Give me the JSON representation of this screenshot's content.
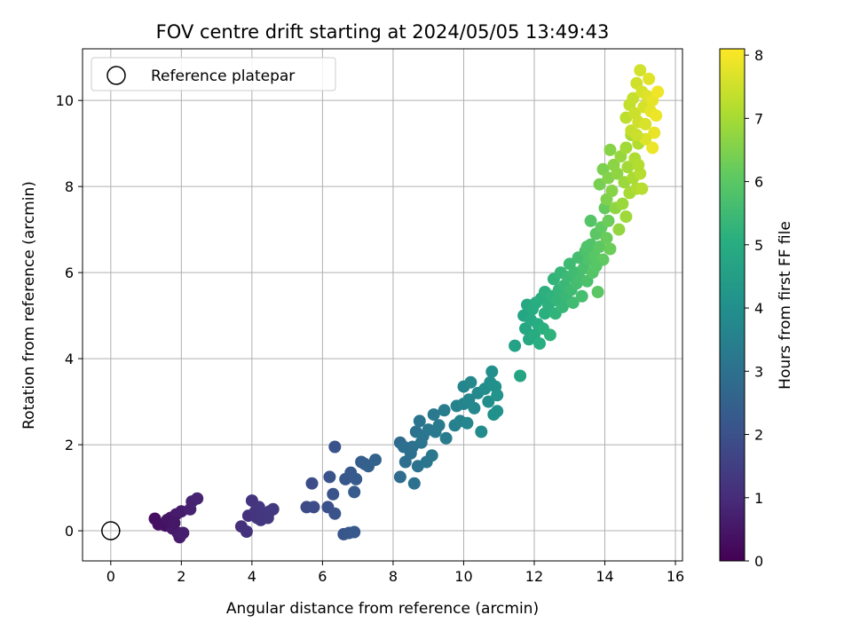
{
  "chart_data": {
    "type": "scatter",
    "title": "FOV centre drift starting at 2024/05/05 13:49:43",
    "xlabel": "Angular distance from reference (arcmin)",
    "ylabel": "Rotation from reference (arcmin)",
    "xlim": [
      -0.8,
      16.2
    ],
    "ylim": [
      -0.7,
      11.2
    ],
    "xticks": [
      0,
      2,
      4,
      6,
      8,
      10,
      12,
      14,
      16
    ],
    "yticks": [
      0,
      2,
      4,
      6,
      8,
      10
    ],
    "grid": true,
    "legend": {
      "position": "top-left",
      "entries": [
        {
          "label": "Reference platepar",
          "marker": "open-circle"
        }
      ]
    },
    "colorbar": {
      "label": "Hours from first FF file",
      "range": [
        0,
        8.1
      ],
      "ticks": [
        0,
        1,
        2,
        3,
        4,
        5,
        6,
        7,
        8
      ],
      "colormap": "viridis"
    },
    "reference_point": {
      "x": 0,
      "y": 0
    },
    "series": [
      {
        "note": "each point: [angular_distance, rotation, hours]",
        "points": [
          [
            1.25,
            0.28,
            0.3
          ],
          [
            1.35,
            0.15,
            0.35
          ],
          [
            1.55,
            0.12,
            0.4
          ],
          [
            1.6,
            0.25,
            0.45
          ],
          [
            1.7,
            0.3,
            0.5
          ],
          [
            1.75,
            0.05,
            0.55
          ],
          [
            1.85,
            0.38,
            0.6
          ],
          [
            1.9,
            -0.05,
            0.6
          ],
          [
            1.95,
            -0.15,
            0.65
          ],
          [
            2.0,
            0.45,
            0.65
          ],
          [
            2.05,
            -0.05,
            0.7
          ],
          [
            2.25,
            0.5,
            0.75
          ],
          [
            2.3,
            0.68,
            0.75
          ],
          [
            2.45,
            0.75,
            0.8
          ],
          [
            1.65,
            0.22,
            0.45
          ],
          [
            1.8,
            0.18,
            0.5
          ],
          [
            3.7,
            0.1,
            1.1
          ],
          [
            3.85,
            -0.02,
            1.15
          ],
          [
            3.9,
            0.35,
            1.15
          ],
          [
            4.0,
            0.7,
            1.2
          ],
          [
            4.1,
            0.45,
            1.2
          ],
          [
            4.2,
            0.55,
            1.25
          ],
          [
            4.25,
            0.25,
            1.25
          ],
          [
            4.3,
            0.4,
            1.3
          ],
          [
            4.45,
            0.3,
            1.3
          ],
          [
            4.5,
            0.45,
            1.35
          ],
          [
            4.6,
            0.5,
            1.35
          ],
          [
            4.15,
            0.3,
            1.25
          ],
          [
            5.55,
            0.55,
            1.8
          ],
          [
            5.75,
            0.55,
            1.85
          ],
          [
            5.7,
            1.1,
            1.9
          ],
          [
            6.15,
            0.55,
            2.0
          ],
          [
            6.2,
            1.25,
            2.05
          ],
          [
            6.3,
            0.85,
            2.05
          ],
          [
            6.35,
            0.4,
            2.1
          ],
          [
            6.35,
            1.95,
            2.1
          ],
          [
            6.6,
            -0.08,
            2.15
          ],
          [
            6.65,
            1.2,
            2.2
          ],
          [
            6.75,
            -0.05,
            2.2
          ],
          [
            6.8,
            1.35,
            2.25
          ],
          [
            6.9,
            -0.03,
            2.25
          ],
          [
            6.95,
            1.2,
            2.3
          ],
          [
            6.9,
            0.9,
            2.3
          ],
          [
            7.1,
            1.6,
            2.4
          ],
          [
            7.2,
            1.55,
            2.45
          ],
          [
            7.3,
            1.5,
            2.5
          ],
          [
            7.5,
            1.65,
            2.55
          ],
          [
            8.2,
            2.05,
            2.8
          ],
          [
            8.2,
            1.25,
            2.85
          ],
          [
            8.3,
            1.95,
            2.9
          ],
          [
            8.35,
            1.6,
            2.9
          ],
          [
            8.5,
            1.8,
            2.95
          ],
          [
            8.55,
            1.95,
            3.0
          ],
          [
            8.6,
            1.1,
            3.0
          ],
          [
            8.65,
            2.3,
            3.05
          ],
          [
            8.7,
            1.5,
            3.05
          ],
          [
            8.75,
            2.55,
            3.1
          ],
          [
            8.8,
            2.05,
            3.1
          ],
          [
            8.85,
            2.2,
            3.15
          ],
          [
            8.95,
            1.6,
            3.15
          ],
          [
            9.0,
            2.35,
            3.2
          ],
          [
            9.1,
            1.75,
            3.2
          ],
          [
            9.15,
            2.7,
            3.25
          ],
          [
            9.2,
            2.3,
            3.25
          ],
          [
            9.3,
            2.45,
            3.3
          ],
          [
            9.45,
            2.8,
            3.35
          ],
          [
            9.5,
            2.15,
            3.35
          ],
          [
            9.75,
            2.45,
            3.5
          ],
          [
            9.8,
            2.9,
            3.55
          ],
          [
            9.9,
            2.55,
            3.6
          ],
          [
            10.0,
            2.95,
            3.65
          ],
          [
            10.0,
            3.35,
            3.65
          ],
          [
            10.1,
            2.5,
            3.7
          ],
          [
            10.15,
            3.05,
            3.7
          ],
          [
            10.2,
            3.45,
            3.75
          ],
          [
            10.3,
            2.85,
            3.75
          ],
          [
            10.4,
            3.2,
            3.8
          ],
          [
            10.5,
            2.3,
            3.85
          ],
          [
            10.6,
            3.3,
            3.9
          ],
          [
            10.7,
            3.0,
            3.95
          ],
          [
            10.75,
            3.45,
            4.0
          ],
          [
            10.8,
            3.7,
            4.0
          ],
          [
            10.85,
            2.7,
            4.05
          ],
          [
            10.9,
            3.35,
            4.1
          ],
          [
            10.95,
            2.78,
            4.1
          ],
          [
            10.95,
            3.15,
            4.15
          ],
          [
            11.45,
            4.3,
            4.6
          ],
          [
            11.6,
            3.6,
            4.7
          ],
          [
            11.7,
            5.0,
            4.75
          ],
          [
            11.75,
            4.7,
            4.8
          ],
          [
            11.8,
            5.25,
            4.85
          ],
          [
            11.85,
            4.45,
            4.85
          ],
          [
            11.9,
            4.9,
            4.9
          ],
          [
            11.95,
            5.15,
            4.95
          ],
          [
            12.0,
            4.55,
            4.95
          ],
          [
            12.05,
            5.3,
            5.0
          ],
          [
            12.1,
            4.8,
            5.0
          ],
          [
            12.15,
            4.35,
            5.05
          ],
          [
            12.2,
            5.4,
            5.05
          ],
          [
            12.25,
            4.7,
            5.1
          ],
          [
            12.3,
            5.05,
            5.1
          ],
          [
            12.3,
            5.55,
            5.15
          ],
          [
            12.4,
            5.25,
            5.15
          ],
          [
            12.45,
            4.55,
            5.2
          ],
          [
            12.5,
            5.45,
            5.2
          ],
          [
            12.55,
            5.85,
            5.25
          ],
          [
            12.6,
            5.05,
            5.25
          ],
          [
            12.65,
            5.35,
            5.3
          ],
          [
            12.7,
            5.6,
            5.3
          ],
          [
            12.75,
            6.0,
            5.35
          ],
          [
            12.8,
            5.2,
            5.35
          ],
          [
            12.85,
            5.7,
            5.4
          ],
          [
            12.9,
            5.45,
            5.4
          ],
          [
            12.95,
            5.9,
            5.45
          ],
          [
            13.0,
            6.2,
            5.5
          ],
          [
            13.05,
            5.6,
            5.5
          ],
          [
            13.1,
            5.3,
            5.55
          ],
          [
            13.15,
            6.0,
            5.55
          ],
          [
            13.2,
            5.75,
            5.6
          ],
          [
            13.25,
            6.35,
            5.6
          ],
          [
            13.3,
            5.85,
            5.65
          ],
          [
            13.35,
            5.45,
            5.65
          ],
          [
            13.4,
            6.1,
            5.7
          ],
          [
            13.45,
            6.5,
            5.75
          ],
          [
            13.5,
            5.8,
            5.75
          ],
          [
            13.55,
            6.3,
            5.8
          ],
          [
            13.6,
            6.65,
            5.85
          ],
          [
            13.6,
            7.2,
            5.9
          ],
          [
            13.65,
            6.0,
            5.9
          ],
          [
            13.7,
            6.4,
            5.95
          ],
          [
            13.75,
            6.9,
            6.0
          ],
          [
            13.8,
            5.55,
            6.0
          ],
          [
            13.85,
            6.6,
            6.05
          ],
          [
            13.9,
            7.05,
            6.1
          ],
          [
            13.95,
            6.3,
            6.1
          ],
          [
            14.0,
            7.5,
            6.15
          ],
          [
            14.05,
            6.8,
            6.2
          ],
          [
            14.1,
            7.2,
            6.25
          ],
          [
            14.15,
            6.55,
            6.25
          ],
          [
            13.75,
            6.15,
            5.95
          ],
          [
            13.5,
            6.6,
            5.8
          ],
          [
            13.85,
            8.05,
            6.4
          ],
          [
            13.95,
            8.4,
            6.45
          ],
          [
            14.05,
            7.7,
            6.5
          ],
          [
            14.1,
            8.2,
            6.55
          ],
          [
            14.15,
            8.85,
            6.6
          ],
          [
            14.2,
            7.9,
            6.6
          ],
          [
            14.25,
            8.5,
            6.65
          ],
          [
            14.3,
            7.5,
            6.7
          ],
          [
            14.35,
            8.3,
            6.7
          ],
          [
            14.4,
            7.0,
            6.75
          ],
          [
            14.45,
            8.7,
            6.8
          ],
          [
            14.5,
            7.6,
            6.85
          ],
          [
            14.55,
            8.1,
            6.85
          ],
          [
            14.6,
            7.3,
            6.9
          ],
          [
            14.6,
            8.9,
            6.95
          ],
          [
            14.65,
            8.45,
            6.95
          ],
          [
            14.7,
            7.85,
            7.0
          ],
          [
            14.75,
            9.2,
            7.05
          ],
          [
            14.8,
            8.2,
            7.05
          ],
          [
            14.85,
            8.65,
            7.1
          ],
          [
            14.9,
            7.95,
            7.1
          ],
          [
            14.95,
            9.0,
            7.15
          ],
          [
            15.0,
            8.3,
            7.2
          ],
          [
            15.05,
            7.95,
            7.2
          ],
          [
            14.95,
            8.5,
            7.15
          ],
          [
            14.6,
            9.6,
            7.3
          ],
          [
            14.7,
            9.9,
            7.35
          ],
          [
            14.75,
            9.3,
            7.4
          ],
          [
            14.8,
            10.05,
            7.4
          ],
          [
            14.85,
            9.7,
            7.45
          ],
          [
            14.9,
            10.4,
            7.5
          ],
          [
            14.95,
            9.5,
            7.5
          ],
          [
            15.0,
            10.7,
            7.55
          ],
          [
            15.05,
            10.2,
            7.6
          ],
          [
            15.1,
            9.85,
            7.6
          ],
          [
            15.15,
            9.45,
            7.65
          ],
          [
            15.2,
            10.1,
            7.7
          ],
          [
            15.25,
            10.5,
            7.75
          ],
          [
            15.3,
            9.75,
            7.8
          ],
          [
            15.35,
            10.0,
            7.8
          ],
          [
            15.4,
            9.25,
            7.85
          ],
          [
            15.45,
            9.65,
            7.9
          ],
          [
            15.5,
            10.2,
            7.95
          ],
          [
            15.35,
            8.9,
            7.9
          ],
          [
            15.15,
            9.1,
            7.7
          ],
          [
            14.9,
            9.2,
            7.45
          ]
        ]
      }
    ]
  }
}
